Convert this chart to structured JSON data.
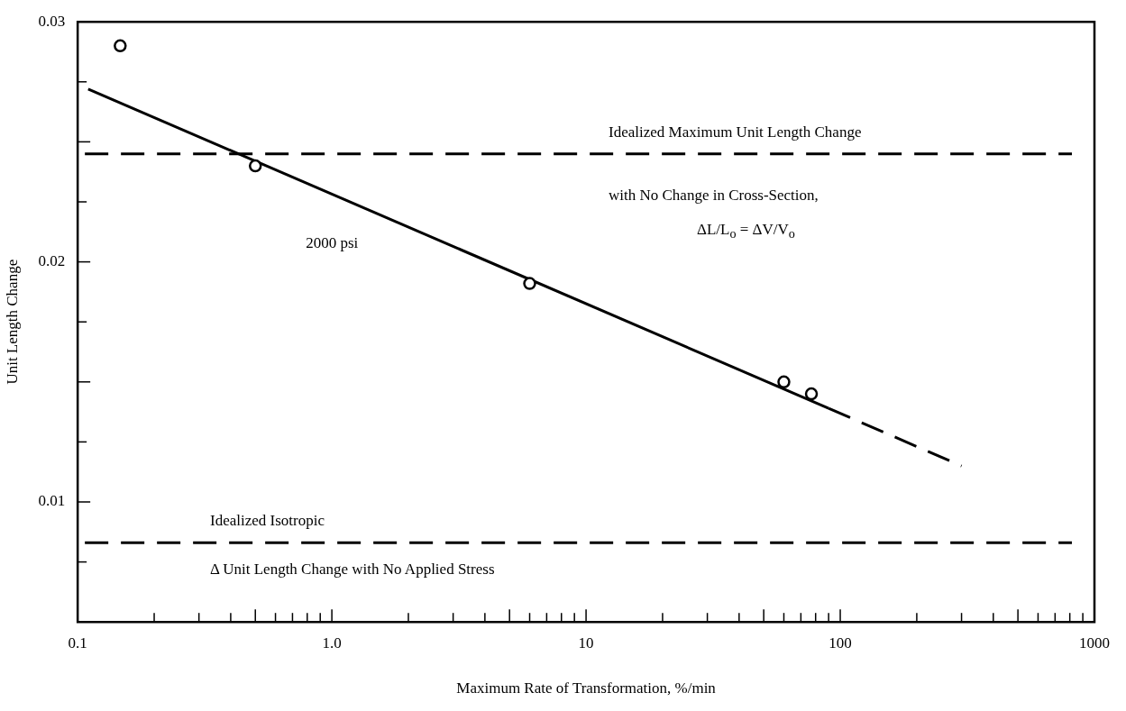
{
  "chart_data": {
    "type": "scatter",
    "xlabel": "Maximum Rate of Transformation, %/min",
    "ylabel": "Unit Length Change",
    "log": "x",
    "xlim": [
      0.1,
      1000
    ],
    "ylim": [
      0.005,
      0.03
    ],
    "xticks": [
      {
        "value": 0.1,
        "label": "0.1"
      },
      {
        "value": 0.2,
        "label": null
      },
      {
        "value": 0.3,
        "label": null
      },
      {
        "value": 0.4,
        "label": null
      },
      {
        "value": 0.5,
        "label": null
      },
      {
        "value": 0.6,
        "label": null
      },
      {
        "value": 0.7,
        "label": null
      },
      {
        "value": 0.8,
        "label": null
      },
      {
        "value": 0.9,
        "label": null
      },
      {
        "value": 1,
        "label": "1.0"
      },
      {
        "value": 2,
        "label": null
      },
      {
        "value": 3,
        "label": null
      },
      {
        "value": 4,
        "label": null
      },
      {
        "value": 5,
        "label": null
      },
      {
        "value": 6,
        "label": null
      },
      {
        "value": 7,
        "label": null
      },
      {
        "value": 8,
        "label": null
      },
      {
        "value": 9,
        "label": null
      },
      10,
      {
        "value": 20,
        "label": null
      },
      {
        "value": 30,
        "label": null
      },
      {
        "value": 40,
        "label": null
      },
      {
        "value": 50,
        "label": null
      },
      {
        "value": 60,
        "label": null
      },
      {
        "value": 70,
        "label": null
      },
      {
        "value": 80,
        "label": null
      },
      {
        "value": 90,
        "label": null
      },
      100,
      {
        "value": 200,
        "label": null
      },
      {
        "value": 300,
        "label": null
      },
      {
        "value": 400,
        "label": null
      },
      {
        "value": 500,
        "label": null
      },
      {
        "value": 600,
        "label": null
      },
      {
        "value": 700,
        "label": null
      },
      {
        "value": 800,
        "label": null
      },
      {
        "value": 900,
        "label": null
      },
      1000
    ],
    "yticks": [
      {
        "value": 0.0075,
        "label": null
      },
      0.01,
      {
        "value": 0.0125,
        "label": null
      },
      {
        "value": 0.015,
        "label": null
      },
      {
        "value": 0.0175,
        "label": null
      },
      0.02,
      {
        "value": 0.0225,
        "label": null
      },
      {
        "value": 0.025,
        "label": null
      },
      {
        "value": 0.0275,
        "label": null
      },
      0.03
    ],
    "grid": false,
    "legend": false,
    "series": [
      {
        "type": "scatter",
        "color": "#000000",
        "marker": "circle",
        "x": [
          0.147,
          0.5,
          6,
          60,
          77
        ],
        "values": [
          0.029,
          0.024,
          0.0191,
          0.015,
          0.0145
        ]
      },
      {
        "type": "line",
        "name": "2000 psi",
        "color": "#000000",
        "marker": "none",
        "line_style": "solid",
        "x": [
          0.11,
          90
        ],
        "values": [
          0.0272,
          0.0139
        ]
      },
      {
        "type": "line",
        "color": "#000000",
        "marker": "none",
        "line_style": "dashed",
        "x": [
          90,
          300
        ],
        "values": [
          0.0139,
          0.0115
        ]
      }
    ],
    "ref_lines": [
      {
        "axis": "y",
        "value": 0.0245,
        "label": "Idealized Maximum Unit Length Change",
        "color": "#000000",
        "line_style": "dashed"
      },
      {
        "axis": "y",
        "value": 0.0083,
        "label": "Idealized Isotropic",
        "color": "#000000",
        "line_style": "dashed"
      }
    ],
    "annotations": [
      "with No Change in Cross-Section,",
      "ΔL/L$_{o}$ = ΔV/V$_{o}$",
      "Δ Unit Length Change with No Applied Stress"
    ]
  }
}
